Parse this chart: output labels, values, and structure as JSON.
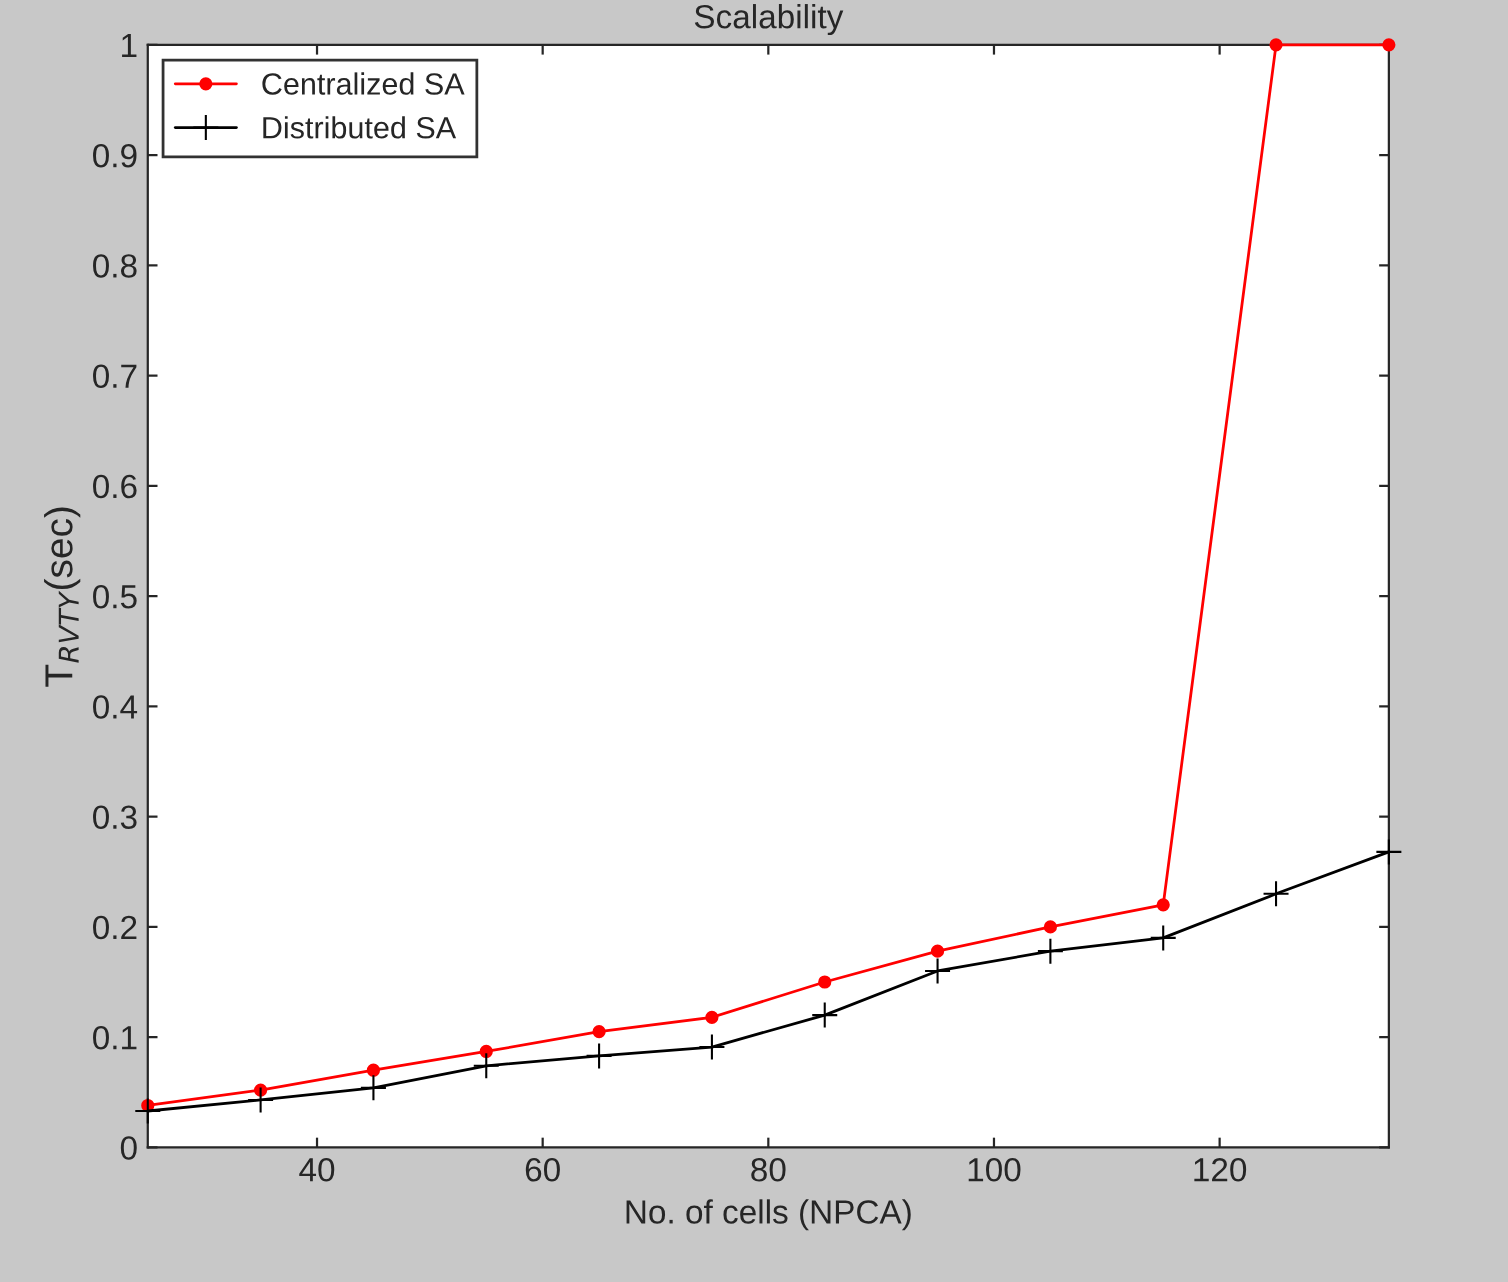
{
  "chart_data": {
    "type": "line",
    "title": "Scalability",
    "xlabel": "No. of cells (NPCA)",
    "ylabel": "T$_{RVTY}$(sec)",
    "x": [
      25,
      35,
      45,
      55,
      65,
      75,
      85,
      95,
      105,
      115,
      125,
      135
    ],
    "series": [
      {
        "name": "Centralized SA",
        "color": "#ff0000",
        "marker": "circle",
        "values": [
          0.038,
          0.052,
          0.07,
          0.087,
          0.105,
          0.118,
          0.15,
          0.178,
          0.2,
          0.22,
          1.0,
          1.0
        ]
      },
      {
        "name": "Distributed SA",
        "color": "#000000",
        "marker": "cross",
        "values": [
          0.033,
          0.043,
          0.054,
          0.074,
          0.083,
          0.091,
          0.12,
          0.16,
          0.178,
          0.19,
          0.23,
          0.268
        ]
      }
    ],
    "xlim": [
      25,
      135
    ],
    "xticks": [
      40,
      60,
      80,
      100,
      120
    ],
    "ylim": [
      0,
      1
    ],
    "yticks": [
      0,
      0.1,
      0.2,
      0.3,
      0.4,
      0.5,
      0.6,
      0.7,
      0.8,
      0.9,
      1
    ],
    "grid": false,
    "legend": "top left",
    "line_style": "solid"
  }
}
